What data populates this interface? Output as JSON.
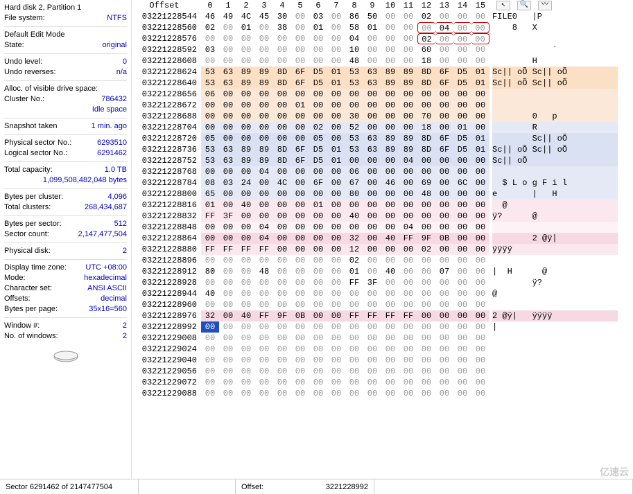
{
  "sidebar": {
    "l1": "Hard disk 2, Partition 1",
    "fs_lbl": "File system:",
    "fs_val": "NTFS",
    "editmode_lbl": "Default Edit Mode",
    "state_lbl": "State:",
    "state_val": "original",
    "undolevel_lbl": "Undo level:",
    "undolevel_val": "0",
    "undorev_lbl": "Undo reverses:",
    "undorev_val": "n/a",
    "alloc_lbl": "Alloc. of visible drive space:",
    "cluster_lbl": "Cluster No.:",
    "cluster_val": "786432",
    "idle_val": "Idle space",
    "snap_lbl": "Snapshot taken",
    "snap_val": "1 min. ago",
    "physsect_lbl": "Physical sector No.:",
    "physsect_val": "6293510",
    "logsect_lbl": "Logical sector No.:",
    "logsect_val": "6291462",
    "totcap_lbl": "Total capacity:",
    "totcap_val": "1.0 TB",
    "totcap_bytes": "1,099,508,482,048 bytes",
    "bpc_lbl": "Bytes per cluster:",
    "bpc_val": "4,096",
    "totc_lbl": "Total clusters:",
    "totc_val": "268,434,687",
    "bps_lbl": "Bytes per sector:",
    "bps_val": "512",
    "sc_lbl": "Sector count:",
    "sc_val": "2,147,477,504",
    "pd_lbl": "Physical disk:",
    "pd_val": "2",
    "tz_lbl": "Display time zone:",
    "tz_val": "UTC +08:00",
    "mode_lbl": "Mode:",
    "mode_val": "hexadecimal",
    "cs_lbl": "Character set:",
    "cs_val": "ANSI ASCII",
    "off_lbl": "Offsets:",
    "off_val": "decimal",
    "bpp_lbl": "Bytes per page:",
    "bpp_val": "35x16=560",
    "win_lbl": "Window #:",
    "win_val": "2",
    "nw_lbl": "No. of windows:",
    "nw_val": "2"
  },
  "header": {
    "offset": "Offset",
    "cols": [
      "0",
      "1",
      "2",
      "3",
      "4",
      "5",
      "6",
      "7",
      "8",
      "9",
      "10",
      "11",
      "12",
      "13",
      "14",
      "15"
    ]
  },
  "rows": [
    {
      "o": "03221228544",
      "b": [
        "46",
        "49",
        "4C",
        "45",
        "30",
        "00",
        "03",
        "00",
        "86",
        "50",
        "00",
        "00",
        "02",
        "00",
        "00",
        "00"
      ],
      "a": "FILE0   |P",
      "bg": ""
    },
    {
      "o": "03221228560",
      "b": [
        "02",
        "00",
        "01",
        "00",
        "38",
        "00",
        "01",
        "00",
        "58",
        "01",
        "00",
        "00",
        "00",
        "04",
        "00",
        "00"
      ],
      "a": "    8   X",
      "bg": "",
      "altr": true,
      "redbox": [
        12,
        15
      ]
    },
    {
      "o": "03221228576",
      "b": [
        "00",
        "00",
        "00",
        "00",
        "00",
        "00",
        "00",
        "00",
        "04",
        "00",
        "00",
        "00",
        "02",
        "00",
        "00",
        "00"
      ],
      "a": "",
      "bg": "",
      "redbox": [
        12,
        15
      ]
    },
    {
      "o": "03221228592",
      "b": [
        "03",
        "00",
        "00",
        "00",
        "00",
        "00",
        "00",
        "00",
        "10",
        "00",
        "00",
        "00",
        "60",
        "00",
        "00",
        "00"
      ],
      "a": "            `",
      "bg": ""
    },
    {
      "o": "03221228608",
      "b": [
        "00",
        "00",
        "00",
        "00",
        "00",
        "00",
        "00",
        "00",
        "48",
        "00",
        "00",
        "00",
        "18",
        "00",
        "00",
        "00"
      ],
      "a": "        H",
      "bg": ""
    },
    {
      "o": "03221228624",
      "b": [
        "53",
        "63",
        "89",
        "89",
        "8D",
        "6F",
        "D5",
        "01",
        "53",
        "63",
        "89",
        "89",
        "8D",
        "6F",
        "D5",
        "01"
      ],
      "a": "Sc|| oÕ Sc|| oÕ",
      "bg": "bg-orange"
    },
    {
      "o": "03221228640",
      "b": [
        "53",
        "63",
        "89",
        "89",
        "8D",
        "6F",
        "D5",
        "01",
        "53",
        "63",
        "89",
        "89",
        "8D",
        "6F",
        "D5",
        "01"
      ],
      "a": "Sc|| oÕ Sc|| oÕ",
      "bg": "bg-orange"
    },
    {
      "o": "03221228656",
      "b": [
        "06",
        "00",
        "00",
        "00",
        "00",
        "00",
        "00",
        "00",
        "00",
        "00",
        "00",
        "00",
        "00",
        "00",
        "00",
        "00"
      ],
      "a": "",
      "bg": "bg-orange2"
    },
    {
      "o": "03221228672",
      "b": [
        "00",
        "00",
        "00",
        "00",
        "00",
        "01",
        "00",
        "00",
        "00",
        "00",
        "00",
        "00",
        "00",
        "00",
        "00",
        "00"
      ],
      "a": "",
      "bg": "bg-orange2"
    },
    {
      "o": "03221228688",
      "b": [
        "00",
        "00",
        "00",
        "00",
        "00",
        "00",
        "00",
        "00",
        "30",
        "00",
        "00",
        "00",
        "70",
        "00",
        "00",
        "00"
      ],
      "a": "        0   p",
      "bg": "bg-orange2"
    },
    {
      "o": "03221228704",
      "b": [
        "00",
        "00",
        "00",
        "00",
        "00",
        "00",
        "02",
        "00",
        "52",
        "00",
        "00",
        "00",
        "18",
        "00",
        "01",
        "00"
      ],
      "a": "        R",
      "bg": "bg-blue2"
    },
    {
      "o": "03221228720",
      "b": [
        "05",
        "00",
        "00",
        "00",
        "00",
        "00",
        "05",
        "00",
        "53",
        "63",
        "89",
        "89",
        "8D",
        "6F",
        "D5",
        "01"
      ],
      "a": "        Sc|| oÕ",
      "bg": "bg-blue"
    },
    {
      "o": "03221228736",
      "b": [
        "53",
        "63",
        "89",
        "89",
        "8D",
        "6F",
        "D5",
        "01",
        "53",
        "63",
        "89",
        "89",
        "8D",
        "6F",
        "D5",
        "01"
      ],
      "a": "Sc|| oÕ Sc|| oÕ",
      "bg": "bg-blue"
    },
    {
      "o": "03221228752",
      "b": [
        "53",
        "63",
        "89",
        "89",
        "8D",
        "6F",
        "D5",
        "01",
        "00",
        "00",
        "00",
        "04",
        "00",
        "00",
        "00",
        "00"
      ],
      "a": "Sc|| oÕ",
      "bg": "bg-blue"
    },
    {
      "o": "03221228768",
      "b": [
        "00",
        "00",
        "00",
        "04",
        "00",
        "00",
        "00",
        "00",
        "06",
        "00",
        "00",
        "00",
        "00",
        "00",
        "00",
        "00"
      ],
      "a": "",
      "bg": "bg-blue2"
    },
    {
      "o": "03221228784",
      "b": [
        "08",
        "03",
        "24",
        "00",
        "4C",
        "00",
        "6F",
        "00",
        "67",
        "00",
        "46",
        "00",
        "69",
        "00",
        "6C",
        "00"
      ],
      "a": "  $ L o g F i l",
      "bg": "bg-blue2"
    },
    {
      "o": "03221228800",
      "b": [
        "65",
        "00",
        "00",
        "00",
        "00",
        "00",
        "00",
        "00",
        "80",
        "00",
        "00",
        "00",
        "48",
        "00",
        "00",
        "00"
      ],
      "a": "e       |   H",
      "bg": "bg-blue2"
    },
    {
      "o": "03221228816",
      "b": [
        "01",
        "00",
        "40",
        "00",
        "00",
        "00",
        "01",
        "00",
        "00",
        "00",
        "00",
        "00",
        "00",
        "00",
        "00",
        "00"
      ],
      "a": "  @",
      "bg": "bg-pink2"
    },
    {
      "o": "03221228832",
      "b": [
        "FF",
        "3F",
        "00",
        "00",
        "00",
        "00",
        "00",
        "00",
        "40",
        "00",
        "00",
        "00",
        "00",
        "00",
        "00",
        "00"
      ],
      "a": "ÿ?      @",
      "bg": "bg-pink2"
    },
    {
      "o": "03221228848",
      "b": [
        "00",
        "00",
        "00",
        "04",
        "00",
        "00",
        "00",
        "00",
        "00",
        "00",
        "00",
        "04",
        "00",
        "00",
        "00",
        "00"
      ],
      "a": "",
      "bg": "bg-pink3"
    },
    {
      "o": "03221228864",
      "b": [
        "00",
        "00",
        "00",
        "04",
        "00",
        "00",
        "00",
        "00",
        "32",
        "00",
        "40",
        "FF",
        "9F",
        "0B",
        "00",
        "00"
      ],
      "a": "        2 @ÿ|",
      "bg": "bg-pink"
    },
    {
      "o": "03221228880",
      "b": [
        "FF",
        "FF",
        "FF",
        "FF",
        "00",
        "00",
        "00",
        "00",
        "12",
        "00",
        "00",
        "00",
        "02",
        "00",
        "00",
        "00"
      ],
      "a": "ÿÿÿÿ",
      "bg": "bg-pink2"
    },
    {
      "o": "03221228896",
      "b": [
        "00",
        "00",
        "00",
        "00",
        "00",
        "00",
        "00",
        "00",
        "02",
        "00",
        "00",
        "00",
        "00",
        "00",
        "00",
        "00"
      ],
      "a": "",
      "bg": ""
    },
    {
      "o": "03221228912",
      "b": [
        "80",
        "00",
        "00",
        "48",
        "00",
        "00",
        "00",
        "00",
        "01",
        "00",
        "40",
        "00",
        "00",
        "07",
        "00",
        "00"
      ],
      "a": "|  H      @",
      "bg": ""
    },
    {
      "o": "03221228928",
      "b": [
        "00",
        "00",
        "00",
        "00",
        "00",
        "00",
        "00",
        "00",
        "FF",
        "3F",
        "00",
        "00",
        "00",
        "00",
        "00",
        "00"
      ],
      "a": "        ÿ?",
      "bg": ""
    },
    {
      "o": "03221228944",
      "b": [
        "40",
        "00",
        "00",
        "00",
        "00",
        "00",
        "00",
        "00",
        "00",
        "00",
        "00",
        "00",
        "00",
        "00",
        "00",
        "00"
      ],
      "a": "@",
      "bg": ""
    },
    {
      "o": "03221228960",
      "b": [
        "00",
        "00",
        "00",
        "00",
        "00",
        "00",
        "00",
        "00",
        "00",
        "00",
        "00",
        "00",
        "00",
        "00",
        "00",
        "00"
      ],
      "a": "",
      "bg": ""
    },
    {
      "o": "03221228976",
      "b": [
        "32",
        "00",
        "40",
        "FF",
        "9F",
        "0B",
        "00",
        "00",
        "FF",
        "FF",
        "FF",
        "FF",
        "00",
        "00",
        "00",
        "00"
      ],
      "a": "2 @ÿ|   ÿÿÿÿ",
      "bg": "bg-pink"
    },
    {
      "o": "03221228992",
      "b": [
        "00",
        "00",
        "00",
        "00",
        "00",
        "00",
        "00",
        "00",
        "00",
        "00",
        "00",
        "00",
        "00",
        "00",
        "00",
        "00"
      ],
      "a": "|",
      "bg": "",
      "cursor": 0
    },
    {
      "o": "03221229008",
      "b": [
        "00",
        "00",
        "00",
        "00",
        "00",
        "00",
        "00",
        "00",
        "00",
        "00",
        "00",
        "00",
        "00",
        "00",
        "00",
        "00"
      ],
      "a": "",
      "bg": ""
    },
    {
      "o": "03221229024",
      "b": [
        "00",
        "00",
        "00",
        "00",
        "00",
        "00",
        "00",
        "00",
        "00",
        "00",
        "00",
        "00",
        "00",
        "00",
        "00",
        "00"
      ],
      "a": "",
      "bg": ""
    },
    {
      "o": "03221229040",
      "b": [
        "00",
        "00",
        "00",
        "00",
        "00",
        "00",
        "00",
        "00",
        "00",
        "00",
        "00",
        "00",
        "00",
        "00",
        "00",
        "00"
      ],
      "a": "",
      "bg": ""
    },
    {
      "o": "03221229056",
      "b": [
        "00",
        "00",
        "00",
        "00",
        "00",
        "00",
        "00",
        "00",
        "00",
        "00",
        "00",
        "00",
        "00",
        "00",
        "00",
        "00"
      ],
      "a": "",
      "bg": ""
    },
    {
      "o": "03221229072",
      "b": [
        "00",
        "00",
        "00",
        "00",
        "00",
        "00",
        "00",
        "00",
        "00",
        "00",
        "00",
        "00",
        "00",
        "00",
        "00",
        "00"
      ],
      "a": "",
      "bg": ""
    },
    {
      "o": "03221229088",
      "b": [
        "00",
        "00",
        "00",
        "00",
        "00",
        "00",
        "00",
        "00",
        "00",
        "00",
        "00",
        "00",
        "00",
        "00",
        "00",
        "00"
      ],
      "a": "",
      "bg": ""
    }
  ],
  "status": {
    "s1": "Sector 6291462 of 2147477504",
    "s2_lbl": "Offset:",
    "s2_val": "3221228992"
  },
  "toolbar": {
    "b1": "↖",
    "b2": "🔍",
    "b3": "〰"
  },
  "watermark": "亿速云"
}
